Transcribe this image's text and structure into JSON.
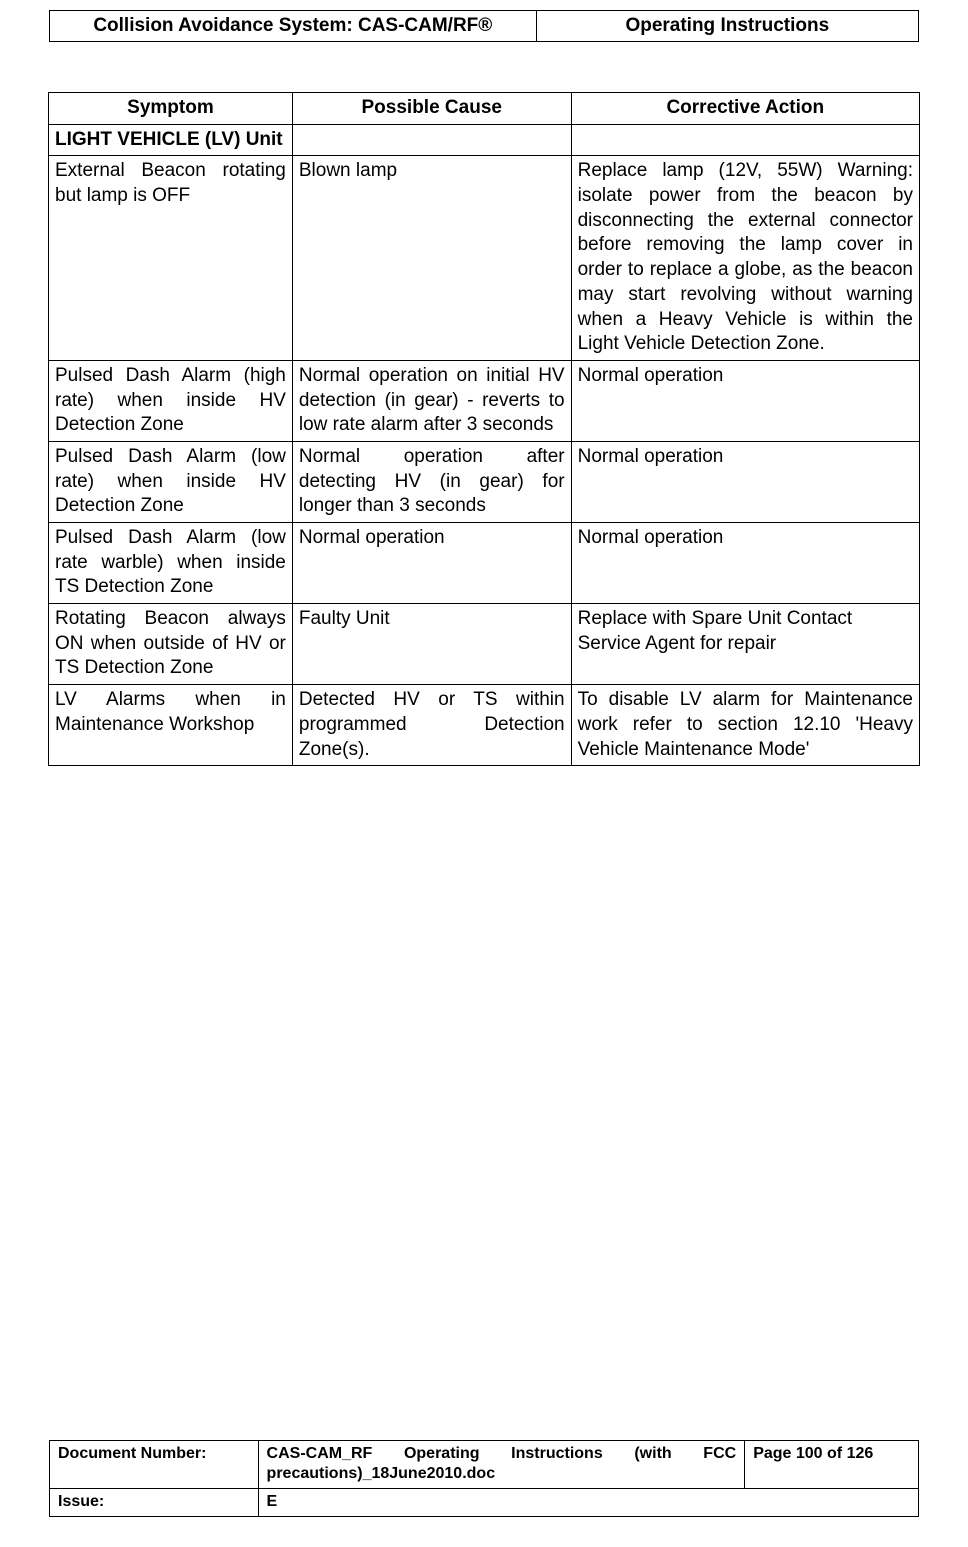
{
  "header": {
    "left": "Collision Avoidance System: CAS-CAM/RF®",
    "right": "Operating Instructions"
  },
  "table": {
    "headers": {
      "symptom": "Symptom",
      "cause": "Possible Cause",
      "action": "Corrective Action"
    },
    "rows": [
      {
        "symptom": "LIGHT VEHICLE (LV) Unit",
        "symptom_bold": true,
        "cause": "",
        "action": ""
      },
      {
        "symptom": "External Beacon rotating but lamp is OFF",
        "cause": "Blown lamp",
        "action": "Replace lamp (12V, 55W) Warning: isolate power from the beacon by disconnecting the external connector before removing the lamp cover in order to replace a globe, as the beacon may start revolving without warning when a Heavy Vehicle is within the Light Vehicle Detection Zone."
      },
      {
        "symptom": "Pulsed Dash Alarm (high rate) when inside HV Detection Zone",
        "cause": "Normal operation on initial HV detection (in gear) - reverts to low rate alarm after 3 seconds",
        "action": "Normal operation"
      },
      {
        "symptom": "Pulsed Dash Alarm (low rate) when inside HV Detection Zone",
        "cause": "Normal operation after detecting HV (in gear) for longer than 3 seconds",
        "action": "Normal operation"
      },
      {
        "symptom": "Pulsed Dash Alarm (low rate warble) when inside TS Detection Zone",
        "cause": "Normal operation",
        "action": "Normal operation"
      },
      {
        "symptom": "Rotating Beacon always ON when outside of HV or TS Detection Zone",
        "cause": "Faulty Unit",
        "action": "Replace with Spare Unit Contact Service Agent for repair"
      },
      {
        "symptom": "LV Alarms when in Maintenance Workshop",
        "cause": "Detected HV or TS within programmed Detection Zone(s).",
        "action": "To disable LV alarm for Maintenance work refer to section 12.10 'Heavy Vehicle Maintenance Mode'"
      }
    ]
  },
  "footer": {
    "doc_number_label": "Document Number:",
    "doc_number_value": "CAS-CAM_RF Operating Instructions (with FCC precautions)_18June2010.doc",
    "page_label": "Page 100 of  126",
    "issue_label": "Issue:",
    "issue_value": "E"
  }
}
